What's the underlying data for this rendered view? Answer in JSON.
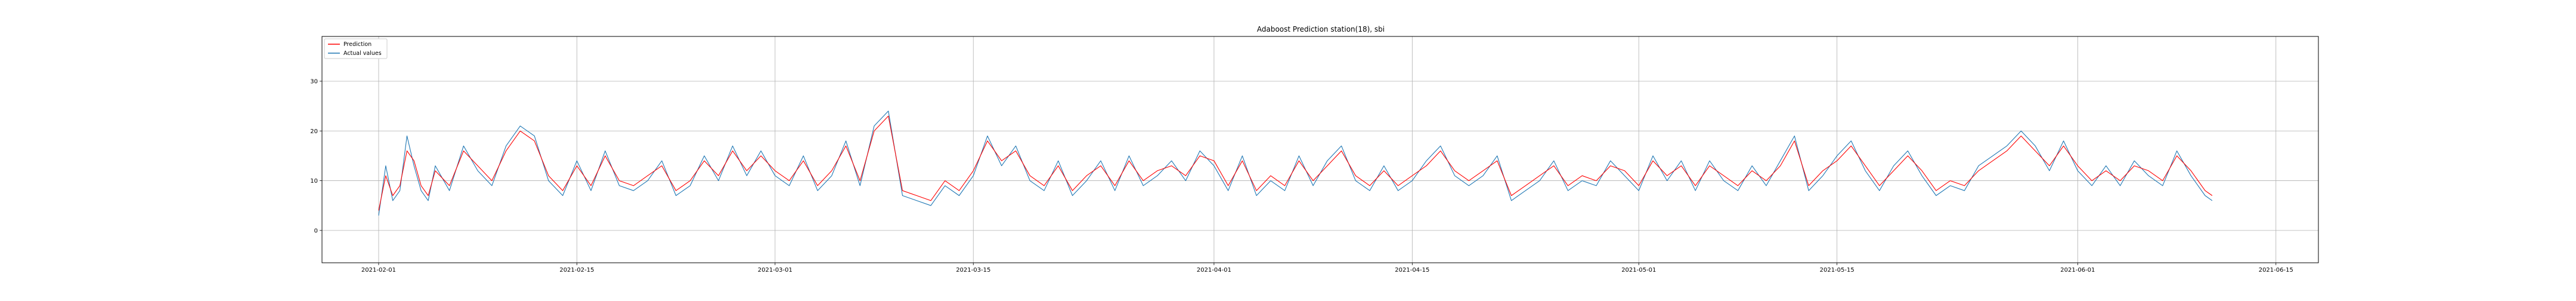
{
  "chart_data": {
    "type": "line",
    "title": "Adaboost Prediction  station(18), sbi",
    "xlabel": "",
    "ylabel": "",
    "xlim": [
      "2021-01-28",
      "2021-06-18"
    ],
    "ylim": [
      -6.5,
      39
    ],
    "x_ticks": [
      "2021-02-01",
      "2021-02-15",
      "2021-03-01",
      "2021-03-15",
      "2021-04-01",
      "2021-04-15",
      "2021-05-01",
      "2021-05-15",
      "2021-06-01",
      "2021-06-15"
    ],
    "y_ticks": [
      0,
      10,
      20,
      30
    ],
    "grid": true,
    "legend_position": "top-left",
    "x_range": [
      "2021-02-01",
      "2021-06-10"
    ],
    "series": [
      {
        "name": "Prediction",
        "color": "#ff0000",
        "keypoints": [
          [
            0,
            4
          ],
          [
            0.5,
            11
          ],
          [
            1,
            7
          ],
          [
            1.5,
            9
          ],
          [
            2,
            16
          ],
          [
            2.5,
            14
          ],
          [
            3,
            9
          ],
          [
            3.5,
            7
          ],
          [
            4,
            12
          ],
          [
            5,
            9
          ],
          [
            6,
            16
          ],
          [
            7,
            13
          ],
          [
            8,
            10
          ],
          [
            9,
            16
          ],
          [
            10,
            20
          ],
          [
            11,
            18
          ],
          [
            12,
            11
          ],
          [
            13,
            8
          ],
          [
            14,
            13
          ],
          [
            15,
            9
          ],
          [
            16,
            15
          ],
          [
            17,
            10
          ],
          [
            18,
            9
          ],
          [
            19,
            11
          ],
          [
            20,
            13
          ],
          [
            21,
            8
          ],
          [
            22,
            10
          ],
          [
            23,
            14
          ],
          [
            24,
            11
          ],
          [
            25,
            16
          ],
          [
            26,
            12
          ],
          [
            27,
            15
          ],
          [
            28,
            12
          ],
          [
            29,
            10
          ],
          [
            30,
            14
          ],
          [
            31,
            9
          ],
          [
            32,
            12
          ],
          [
            33,
            17
          ],
          [
            34,
            10
          ],
          [
            35,
            20
          ],
          [
            36,
            23
          ],
          [
            37,
            8
          ],
          [
            38,
            7
          ],
          [
            39,
            6
          ],
          [
            40,
            10
          ],
          [
            41,
            8
          ],
          [
            42,
            12
          ],
          [
            43,
            18
          ],
          [
            44,
            14
          ],
          [
            45,
            16
          ],
          [
            46,
            11
          ],
          [
            47,
            9
          ],
          [
            48,
            13
          ],
          [
            49,
            8
          ],
          [
            50,
            11
          ],
          [
            51,
            13
          ],
          [
            52,
            9
          ],
          [
            53,
            14
          ],
          [
            54,
            10
          ],
          [
            55,
            12
          ],
          [
            56,
            13
          ],
          [
            57,
            11
          ],
          [
            58,
            15
          ],
          [
            59,
            14
          ],
          [
            60,
            9
          ],
          [
            61,
            14
          ],
          [
            62,
            8
          ],
          [
            63,
            11
          ],
          [
            64,
            9
          ],
          [
            65,
            14
          ],
          [
            66,
            10
          ],
          [
            67,
            13
          ],
          [
            68,
            16
          ],
          [
            69,
            11
          ],
          [
            70,
            9
          ],
          [
            71,
            12
          ],
          [
            72,
            9
          ],
          [
            73,
            11
          ],
          [
            74,
            13
          ],
          [
            75,
            16
          ],
          [
            76,
            12
          ],
          [
            77,
            10
          ],
          [
            78,
            12
          ],
          [
            79,
            14
          ],
          [
            80,
            7
          ],
          [
            81,
            9
          ],
          [
            82,
            11
          ],
          [
            83,
            13
          ],
          [
            84,
            9
          ],
          [
            85,
            11
          ],
          [
            86,
            10
          ],
          [
            87,
            13
          ],
          [
            88,
            12
          ],
          [
            89,
            9
          ],
          [
            90,
            14
          ],
          [
            91,
            11
          ],
          [
            92,
            13
          ],
          [
            93,
            9
          ],
          [
            94,
            13
          ],
          [
            95,
            11
          ],
          [
            96,
            9
          ],
          [
            97,
            12
          ],
          [
            98,
            10
          ],
          [
            99,
            13
          ],
          [
            100,
            18
          ],
          [
            101,
            9
          ],
          [
            102,
            12
          ],
          [
            103,
            14
          ],
          [
            104,
            17
          ],
          [
            105,
            13
          ],
          [
            106,
            9
          ],
          [
            107,
            12
          ],
          [
            108,
            15
          ],
          [
            109,
            12
          ],
          [
            110,
            8
          ],
          [
            111,
            10
          ],
          [
            112,
            9
          ],
          [
            113,
            12
          ],
          [
            114,
            14
          ],
          [
            115,
            16
          ],
          [
            116,
            19
          ],
          [
            117,
            16
          ],
          [
            118,
            13
          ],
          [
            119,
            17
          ],
          [
            120,
            13
          ],
          [
            121,
            10
          ],
          [
            122,
            12
          ],
          [
            123,
            10
          ],
          [
            124,
            13
          ],
          [
            125,
            12
          ],
          [
            126,
            10
          ],
          [
            127,
            15
          ],
          [
            128,
            12
          ],
          [
            129,
            8
          ],
          [
            129.5,
            7
          ]
        ]
      },
      {
        "name": "Actual values",
        "color": "#1f77b4",
        "keypoints": [
          [
            0,
            3
          ],
          [
            0.5,
            13
          ],
          [
            1,
            6
          ],
          [
            1.5,
            8
          ],
          [
            2,
            19
          ],
          [
            2.5,
            13
          ],
          [
            3,
            8
          ],
          [
            3.5,
            6
          ],
          [
            4,
            13
          ],
          [
            5,
            8
          ],
          [
            6,
            17
          ],
          [
            7,
            12
          ],
          [
            8,
            9
          ],
          [
            9,
            17
          ],
          [
            10,
            21
          ],
          [
            11,
            19
          ],
          [
            12,
            10
          ],
          [
            13,
            7
          ],
          [
            14,
            14
          ],
          [
            15,
            8
          ],
          [
            16,
            16
          ],
          [
            17,
            9
          ],
          [
            18,
            8
          ],
          [
            19,
            10
          ],
          [
            20,
            14
          ],
          [
            21,
            7
          ],
          [
            22,
            9
          ],
          [
            23,
            15
          ],
          [
            24,
            10
          ],
          [
            25,
            17
          ],
          [
            26,
            11
          ],
          [
            27,
            16
          ],
          [
            28,
            11
          ],
          [
            29,
            9
          ],
          [
            30,
            15
          ],
          [
            31,
            8
          ],
          [
            32,
            11
          ],
          [
            33,
            18
          ],
          [
            34,
            9
          ],
          [
            35,
            21
          ],
          [
            36,
            24
          ],
          [
            37,
            7
          ],
          [
            38,
            6
          ],
          [
            39,
            5
          ],
          [
            40,
            9
          ],
          [
            41,
            7
          ],
          [
            42,
            11
          ],
          [
            43,
            19
          ],
          [
            44,
            13
          ],
          [
            45,
            17
          ],
          [
            46,
            10
          ],
          [
            47,
            8
          ],
          [
            48,
            14
          ],
          [
            49,
            7
          ],
          [
            50,
            10
          ],
          [
            51,
            14
          ],
          [
            52,
            8
          ],
          [
            53,
            15
          ],
          [
            54,
            9
          ],
          [
            55,
            11
          ],
          [
            56,
            14
          ],
          [
            57,
            10
          ],
          [
            58,
            16
          ],
          [
            59,
            13
          ],
          [
            60,
            8
          ],
          [
            61,
            15
          ],
          [
            62,
            7
          ],
          [
            63,
            10
          ],
          [
            64,
            8
          ],
          [
            65,
            15
          ],
          [
            66,
            9
          ],
          [
            67,
            14
          ],
          [
            68,
            17
          ],
          [
            69,
            10
          ],
          [
            70,
            8
          ],
          [
            71,
            13
          ],
          [
            72,
            8
          ],
          [
            73,
            10
          ],
          [
            74,
            14
          ],
          [
            75,
            17
          ],
          [
            76,
            11
          ],
          [
            77,
            9
          ],
          [
            78,
            11
          ],
          [
            79,
            15
          ],
          [
            80,
            6
          ],
          [
            81,
            8
          ],
          [
            82,
            10
          ],
          [
            83,
            14
          ],
          [
            84,
            8
          ],
          [
            85,
            10
          ],
          [
            86,
            9
          ],
          [
            87,
            14
          ],
          [
            88,
            11
          ],
          [
            89,
            8
          ],
          [
            90,
            15
          ],
          [
            91,
            10
          ],
          [
            92,
            14
          ],
          [
            93,
            8
          ],
          [
            94,
            14
          ],
          [
            95,
            10
          ],
          [
            96,
            8
          ],
          [
            97,
            13
          ],
          [
            98,
            9
          ],
          [
            99,
            14
          ],
          [
            100,
            19
          ],
          [
            101,
            8
          ],
          [
            102,
            11
          ],
          [
            103,
            15
          ],
          [
            104,
            18
          ],
          [
            105,
            12
          ],
          [
            106,
            8
          ],
          [
            107,
            13
          ],
          [
            108,
            16
          ],
          [
            109,
            11
          ],
          [
            110,
            7
          ],
          [
            111,
            9
          ],
          [
            112,
            8
          ],
          [
            113,
            13
          ],
          [
            114,
            15
          ],
          [
            115,
            17
          ],
          [
            116,
            20
          ],
          [
            117,
            17
          ],
          [
            118,
            12
          ],
          [
            119,
            18
          ],
          [
            120,
            12
          ],
          [
            121,
            9
          ],
          [
            122,
            13
          ],
          [
            123,
            9
          ],
          [
            124,
            14
          ],
          [
            125,
            11
          ],
          [
            126,
            9
          ],
          [
            127,
            16
          ],
          [
            128,
            11
          ],
          [
            129,
            7
          ],
          [
            129.5,
            6
          ]
        ]
      }
    ]
  }
}
